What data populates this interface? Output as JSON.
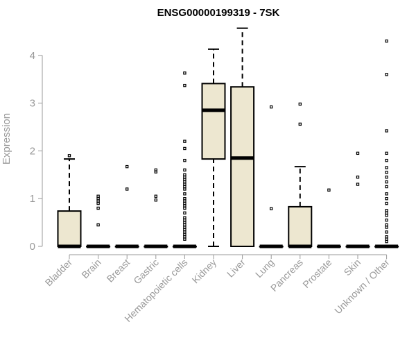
{
  "chart_data": {
    "type": "boxplot",
    "title": "ENSG00000199319 - 7SK",
    "xlabel": "",
    "ylabel": "Expression",
    "ylim": [
      0,
      4.6
    ],
    "yticks": [
      0,
      1,
      2,
      3,
      4
    ],
    "box_color": "#ede7d0",
    "categories": [
      "Bladder",
      "Brain",
      "Breast",
      "Gastric",
      "Hematopoietic cells",
      "Kidney",
      "Liver",
      "Lung",
      "Pancreas",
      "Prostate",
      "Skin",
      "Unknown / Other"
    ],
    "boxes": [
      {
        "category": "Bladder",
        "min": 0,
        "q1": 0,
        "median": 0,
        "q3": 0.74,
        "max": 1.83,
        "outliers": [
          1.9
        ]
      },
      {
        "category": "Brain",
        "min": 0,
        "q1": 0,
        "median": 0,
        "q3": 0,
        "max": 0,
        "outliers": [
          1.05,
          1.0,
          0.95,
          0.9,
          0.8,
          0.45
        ]
      },
      {
        "category": "Breast",
        "min": 0,
        "q1": 0,
        "median": 0,
        "q3": 0,
        "max": 0,
        "outliers": [
          1.67,
          1.2
        ]
      },
      {
        "category": "Gastric",
        "min": 0,
        "q1": 0,
        "median": 0,
        "q3": 0,
        "max": 0,
        "outliers": [
          1.6,
          1.56,
          1.05,
          0.97
        ]
      },
      {
        "category": "Hematopoietic cells",
        "min": 0,
        "q1": 0,
        "median": 0,
        "q3": 0,
        "max": 0,
        "outliers": [
          3.63,
          3.37,
          2.2,
          2.05,
          1.8,
          1.6,
          1.5,
          1.45,
          1.4,
          1.35,
          1.3,
          1.25,
          1.2,
          1.1,
          1.0,
          0.95,
          0.9,
          0.85,
          0.8,
          0.7,
          0.6,
          0.55,
          0.5,
          0.45,
          0.4,
          0.35,
          0.3,
          0.25,
          0.2,
          0.15
        ]
      },
      {
        "category": "Kidney",
        "min": 0,
        "q1": 1.83,
        "median": 2.85,
        "q3": 3.41,
        "max": 4.13,
        "outliers": []
      },
      {
        "category": "Liver",
        "min": 0,
        "q1": 0,
        "median": 1.85,
        "q3": 3.34,
        "max": 4.57,
        "outliers": []
      },
      {
        "category": "Lung",
        "min": 0,
        "q1": 0,
        "median": 0,
        "q3": 0,
        "max": 0,
        "outliers": [
          2.92,
          0.79
        ]
      },
      {
        "category": "Pancreas",
        "min": 0,
        "q1": 0,
        "median": 0,
        "q3": 0.83,
        "max": 1.67,
        "outliers": [
          2.98,
          2.56
        ]
      },
      {
        "category": "Prostate",
        "min": 0,
        "q1": 0,
        "median": 0,
        "q3": 0,
        "max": 0,
        "outliers": [
          1.18
        ]
      },
      {
        "category": "Skin",
        "min": 0,
        "q1": 0,
        "median": 0,
        "q3": 0,
        "max": 0,
        "outliers": [
          1.95,
          1.45,
          1.3
        ]
      },
      {
        "category": "Unknown / Other",
        "min": 0,
        "q1": 0,
        "median": 0,
        "q3": 0,
        "max": 0,
        "outliers": [
          4.3,
          3.6,
          2.42,
          1.95,
          1.8,
          1.65,
          1.55,
          1.45,
          1.35,
          1.25,
          1.1,
          1.0,
          0.9,
          0.75,
          0.7,
          0.65,
          0.55,
          0.45,
          0.4,
          0.3,
          0.2,
          0.15,
          0.1
        ]
      }
    ]
  }
}
